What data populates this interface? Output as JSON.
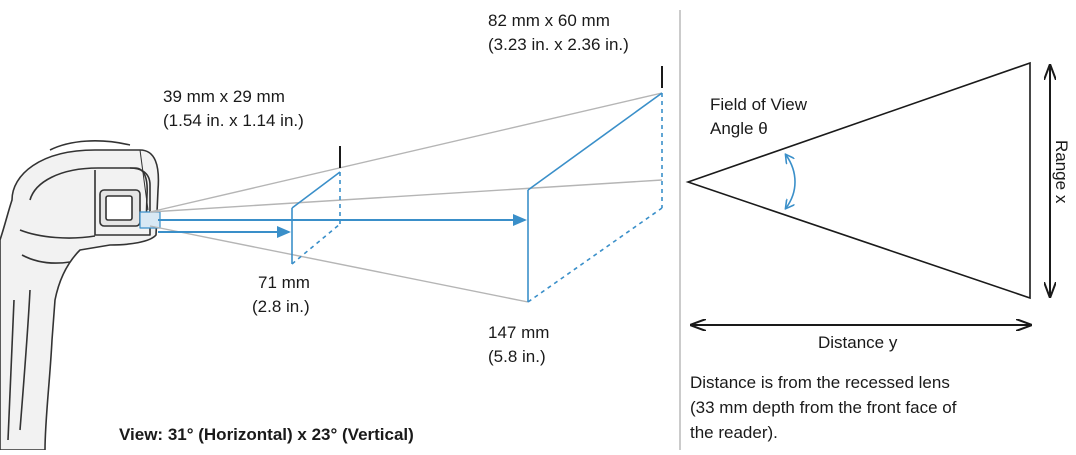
{
  "near_window": {
    "size_mm": "39 mm x 29 mm",
    "size_in": "(1.54 in. x 1.14 in.)"
  },
  "far_window": {
    "size_mm": "82 mm x 60 mm",
    "size_in": "(3.23 in. x 2.36 in.)"
  },
  "near_distance": {
    "mm": "71 mm",
    "in": "(2.8 in.)"
  },
  "far_distance": {
    "mm": "147 mm",
    "in": "(5.8 in.)"
  },
  "view_caption": "View: 31° (Horizontal) x 23° (Vertical)",
  "fov_label_line1": "Field of View",
  "fov_label_line2": "Angle θ",
  "range_label": "Range x",
  "distance_label": "Distance y",
  "note": {
    "line1": "Distance is from the recessed lens",
    "line2": "(33 mm depth from the front face of",
    "line3": "the reader)."
  },
  "colors": {
    "beam": "#3a8fc9",
    "outline": "#333333",
    "guide": "#b0b0b0"
  }
}
